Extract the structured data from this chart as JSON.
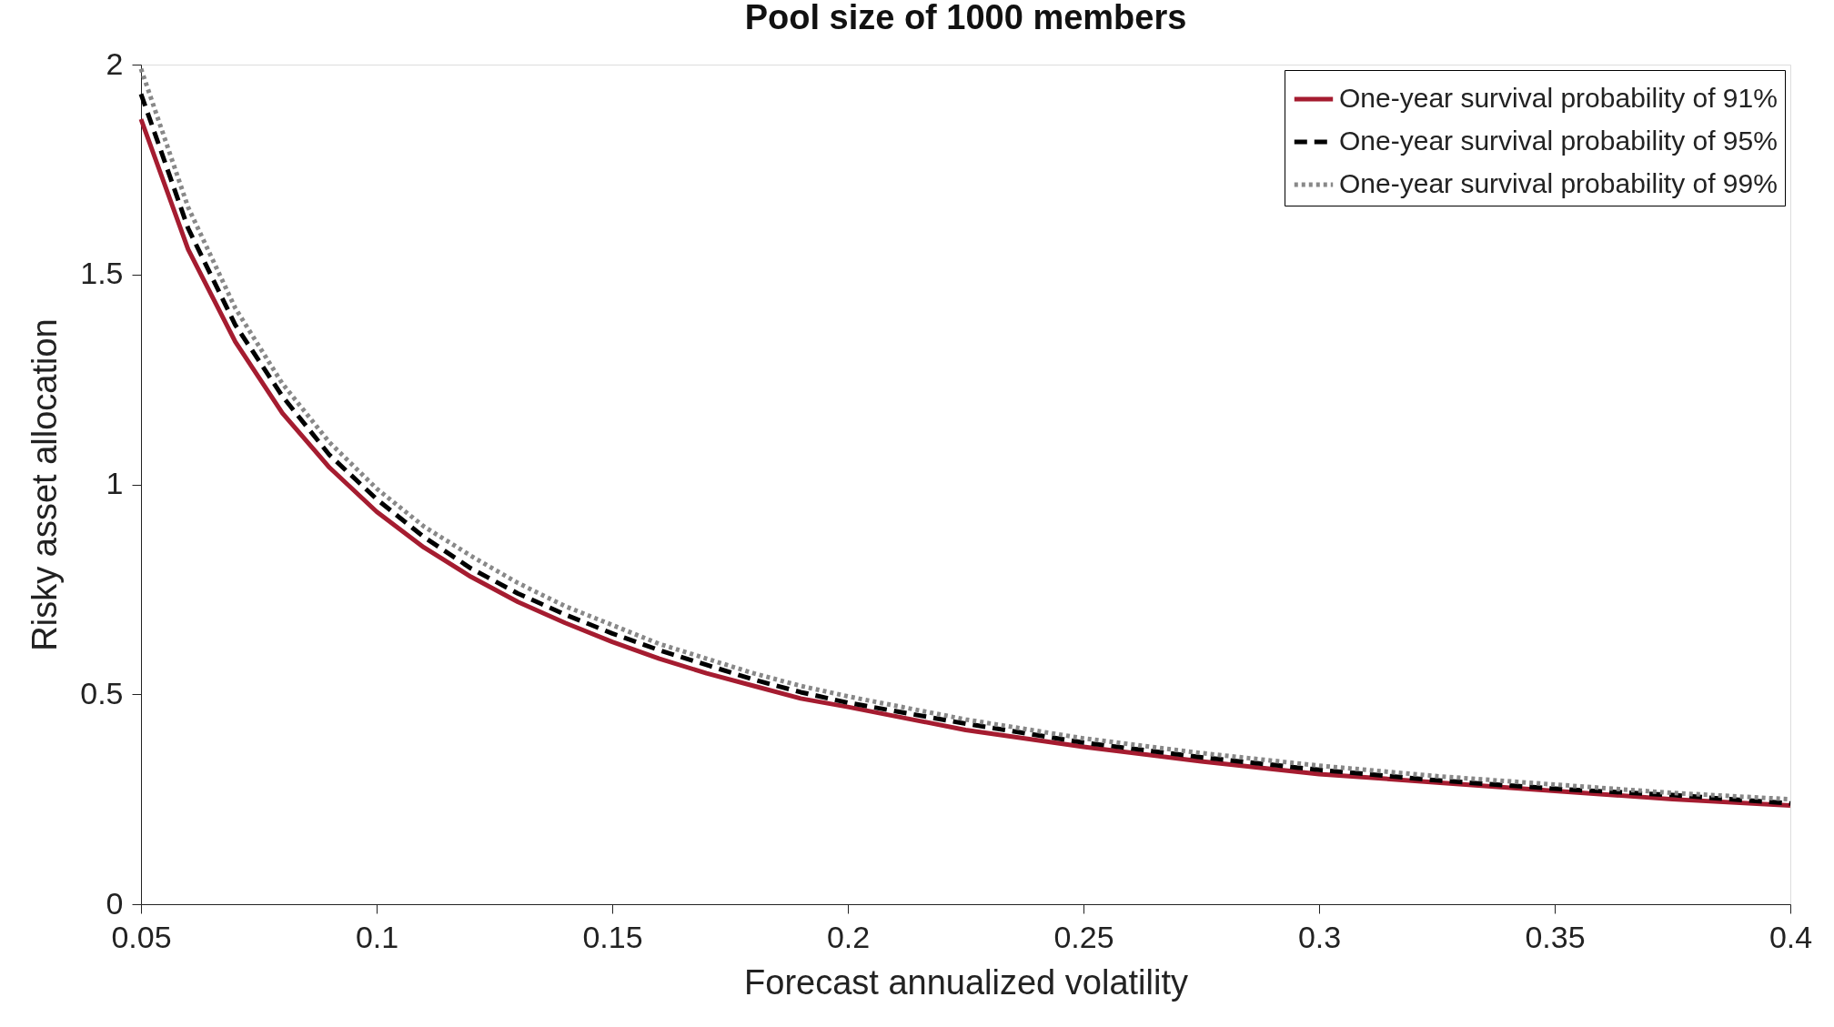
{
  "chart_data": {
    "type": "line",
    "title": "Pool size of 1000 members",
    "xlabel": "Forecast annualized volatility",
    "ylabel": "Risky asset allocation",
    "x": [
      0.05,
      0.06,
      0.07,
      0.08,
      0.09,
      0.1,
      0.11,
      0.12,
      0.13,
      0.14,
      0.15,
      0.16,
      0.17,
      0.18,
      0.19,
      0.2,
      0.225,
      0.25,
      0.275,
      0.3,
      0.325,
      0.35,
      0.375,
      0.4
    ],
    "series": [
      {
        "name": "One-year survival probability of 91%",
        "color": "#a51c30",
        "line_style": "solid",
        "values": [
          1.87,
          1.56,
          1.34,
          1.17,
          1.04,
          0.935,
          0.85,
          0.78,
          0.72,
          0.67,
          0.625,
          0.585,
          0.55,
          0.52,
          0.49,
          0.47,
          0.415,
          0.375,
          0.34,
          0.31,
          0.29,
          0.27,
          0.25,
          0.235
        ]
      },
      {
        "name": "One-year survival probability of 95%",
        "color": "#000000",
        "line_style": "dashed",
        "values": [
          1.93,
          1.61,
          1.38,
          1.21,
          1.07,
          0.965,
          0.875,
          0.8,
          0.74,
          0.69,
          0.645,
          0.605,
          0.57,
          0.535,
          0.505,
          0.48,
          0.43,
          0.385,
          0.35,
          0.32,
          0.295,
          0.275,
          0.26,
          0.24
        ]
      },
      {
        "name": "One-year survival probability of 99%",
        "color": "#888888",
        "line_style": "dotted",
        "values": [
          1.99,
          1.66,
          1.42,
          1.24,
          1.1,
          0.99,
          0.9,
          0.83,
          0.765,
          0.71,
          0.665,
          0.62,
          0.585,
          0.55,
          0.52,
          0.495,
          0.44,
          0.395,
          0.36,
          0.33,
          0.305,
          0.285,
          0.265,
          0.25
        ]
      }
    ],
    "xlim": [
      0.05,
      0.4
    ],
    "xticks": [
      0.05,
      0.1,
      0.15,
      0.2,
      0.25,
      0.3,
      0.35,
      0.4
    ],
    "ylim": [
      0,
      2
    ],
    "yticks": [
      0,
      0.5,
      1,
      1.5,
      2
    ],
    "grid": false,
    "legend": "top right",
    "marker": "none"
  }
}
